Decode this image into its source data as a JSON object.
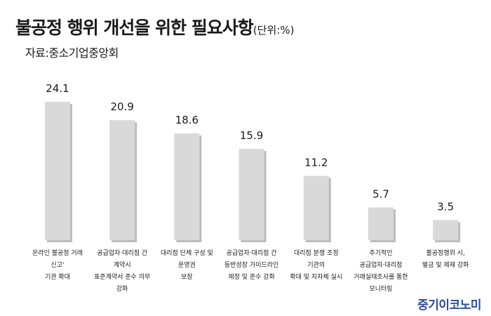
{
  "title": "불공정 행위 개선을 위한 필요사항",
  "unit": "(단위:%)",
  "source": "자료:중소기업중앙회",
  "brand": "중기이코노미",
  "chart_data": {
    "type": "bar",
    "categories": [
      [
        "온라인 불공정 거래",
        "신고'",
        "기관 확대"
      ],
      [
        "공급업자·대리점 간",
        "계약시",
        "표준계약서 준수 의무",
        "강화"
      ],
      [
        "대리점 단체 구성 및",
        "운영권",
        "보장"
      ],
      [
        "공급업자·대리점 간",
        "동반성장 가이드라인",
        "제정 및 준수 강화"
      ],
      [
        "대리점 분쟁 조정",
        "기관의",
        "확대 및 지자체 실시"
      ],
      [
        "주기적인",
        "공급업자·대리점",
        "거래실태조사를 통한",
        "모니터링"
      ],
      [
        "불공정행위 시,",
        "벌금 및 제재 강화"
      ]
    ],
    "values": [
      24.1,
      20.9,
      18.6,
      15.9,
      11.2,
      5.7,
      3.5
    ],
    "ylim": [
      0,
      24.1
    ],
    "bar_color": "#d9d9d9",
    "bar_shadow_color": "#bcbcbc",
    "grid": false,
    "legend": "none"
  }
}
